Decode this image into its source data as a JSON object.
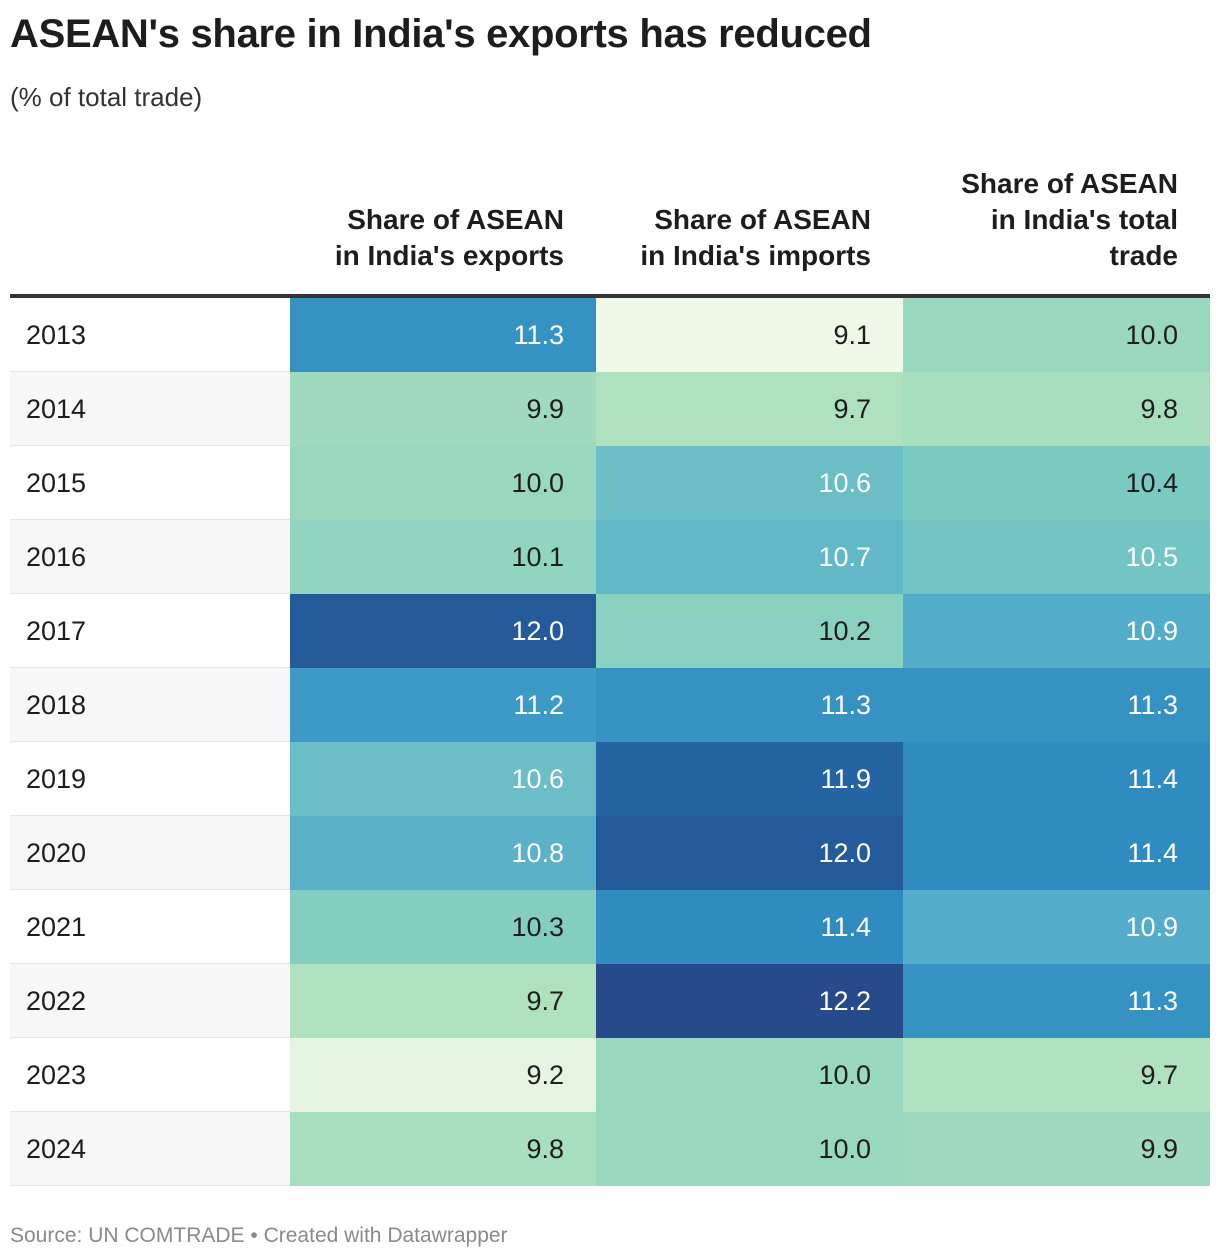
{
  "title": "ASEAN's share in India's exports has reduced",
  "subtitle": "(% of total trade)",
  "footer": {
    "source": "Source: UN COMTRADE",
    "separator": "•",
    "credit": "Created with Datawrapper"
  },
  "chart_data": {
    "type": "table",
    "title": "ASEAN's share in India's exports has reduced",
    "subtitle": "(% of total trade)",
    "columns": [
      {
        "key": "exports",
        "label_lines": [
          "Share of ASEAN",
          "in India's exports"
        ]
      },
      {
        "key": "imports",
        "label_lines": [
          "Share of ASEAN",
          "in India's imports"
        ]
      },
      {
        "key": "total",
        "label_lines": [
          "Share of ASEAN",
          "in India's total",
          "trade"
        ]
      }
    ],
    "rows": [
      {
        "year": "2013",
        "exports": "11.3",
        "imports": "9.1",
        "total": "10.0"
      },
      {
        "year": "2014",
        "exports": "9.9",
        "imports": "9.7",
        "total": "9.8"
      },
      {
        "year": "2015",
        "exports": "10.0",
        "imports": "10.6",
        "total": "10.4"
      },
      {
        "year": "2016",
        "exports": "10.1",
        "imports": "10.7",
        "total": "10.5"
      },
      {
        "year": "2017",
        "exports": "12.0",
        "imports": "10.2",
        "total": "10.9"
      },
      {
        "year": "2018",
        "exports": "11.2",
        "imports": "11.3",
        "total": "11.3"
      },
      {
        "year": "2019",
        "exports": "10.6",
        "imports": "11.9",
        "total": "11.4"
      },
      {
        "year": "2020",
        "exports": "10.8",
        "imports": "12.0",
        "total": "11.4"
      },
      {
        "year": "2021",
        "exports": "10.3",
        "imports": "11.4",
        "total": "10.9"
      },
      {
        "year": "2022",
        "exports": "9.7",
        "imports": "12.2",
        "total": "11.3"
      },
      {
        "year": "2023",
        "exports": "9.2",
        "imports": "10.0",
        "total": "9.7"
      },
      {
        "year": "2024",
        "exports": "9.8",
        "imports": "10.0",
        "total": "9.9"
      }
    ],
    "color_scale": {
      "min": 9.1,
      "max": 12.2,
      "stops": [
        "#f0f9e8",
        "#ade0bd",
        "#80cdc1",
        "#4ea9cb",
        "#237fbc",
        "#264a8a"
      ]
    }
  }
}
